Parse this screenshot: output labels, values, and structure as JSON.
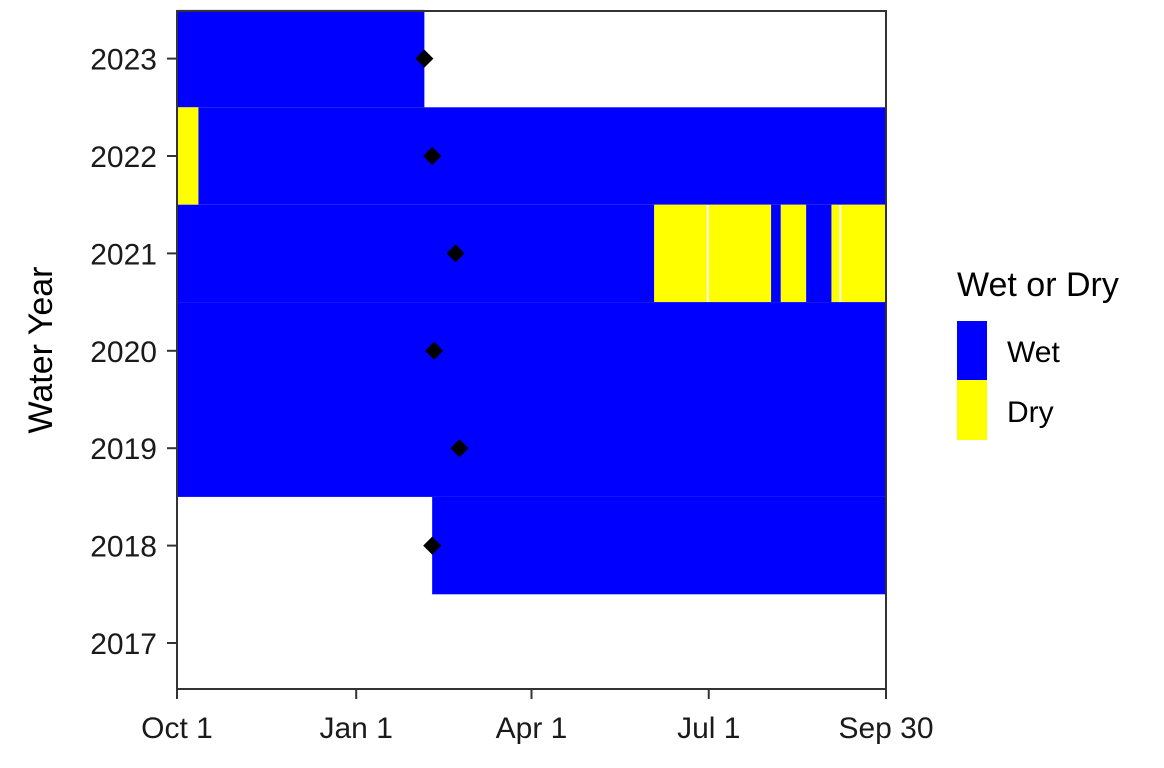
{
  "chart_data": {
    "type": "heatmap",
    "ylabel": "Water Year",
    "xlabel": "",
    "x_ticks": [
      "Oct 1",
      "Jan 1",
      "Apr 1",
      "Jul 1",
      "Sep 30"
    ],
    "x_tick_days": [
      0,
      92,
      182,
      273,
      364
    ],
    "y_categories": [
      "2017",
      "2018",
      "2019",
      "2020",
      "2021",
      "2022",
      "2023"
    ],
    "legend": {
      "title": "Wet or Dry",
      "items": [
        {
          "label": "Wet",
          "color": "#0000ff"
        },
        {
          "label": "Dry",
          "color": "#ffff00"
        }
      ],
      "position": "right"
    },
    "grid": false,
    "intervals": [
      {
        "year": "2023",
        "status": "Wet",
        "start_day": 0,
        "end_day": 127
      },
      {
        "year": "2022",
        "status": "Dry",
        "start_day": 0,
        "end_day": 11
      },
      {
        "year": "2022",
        "status": "Wet",
        "start_day": 11,
        "end_day": 364
      },
      {
        "year": "2021",
        "status": "Wet",
        "start_day": 0,
        "end_day": 245
      },
      {
        "year": "2021",
        "status": "Dry",
        "start_day": 245,
        "end_day": 272
      },
      {
        "year": "2021",
        "status": "Dry",
        "start_day": 273,
        "end_day": 305
      },
      {
        "year": "2021",
        "status": "Wet",
        "start_day": 305,
        "end_day": 310
      },
      {
        "year": "2021",
        "status": "Dry",
        "start_day": 310,
        "end_day": 323
      },
      {
        "year": "2021",
        "status": "Wet",
        "start_day": 323,
        "end_day": 336
      },
      {
        "year": "2021",
        "status": "Dry",
        "start_day": 336,
        "end_day": 340
      },
      {
        "year": "2021",
        "status": "Dry",
        "start_day": 341,
        "end_day": 364
      },
      {
        "year": "2020",
        "status": "Wet",
        "start_day": 0,
        "end_day": 364
      },
      {
        "year": "2019",
        "status": "Wet",
        "start_day": 0,
        "end_day": 364
      },
      {
        "year": "2018",
        "status": "Wet",
        "start_day": 131,
        "end_day": 364
      }
    ],
    "markers": [
      {
        "year": "2023",
        "day": 127
      },
      {
        "year": "2022",
        "day": 131
      },
      {
        "year": "2021",
        "day": 143
      },
      {
        "year": "2020",
        "day": 132
      },
      {
        "year": "2019",
        "day": 145
      },
      {
        "year": "2018",
        "day": 131
      }
    ],
    "colors": {
      "wet": "#0000ff",
      "dry": "#ffff00",
      "marker": "#000000",
      "axis": "#333333"
    }
  }
}
